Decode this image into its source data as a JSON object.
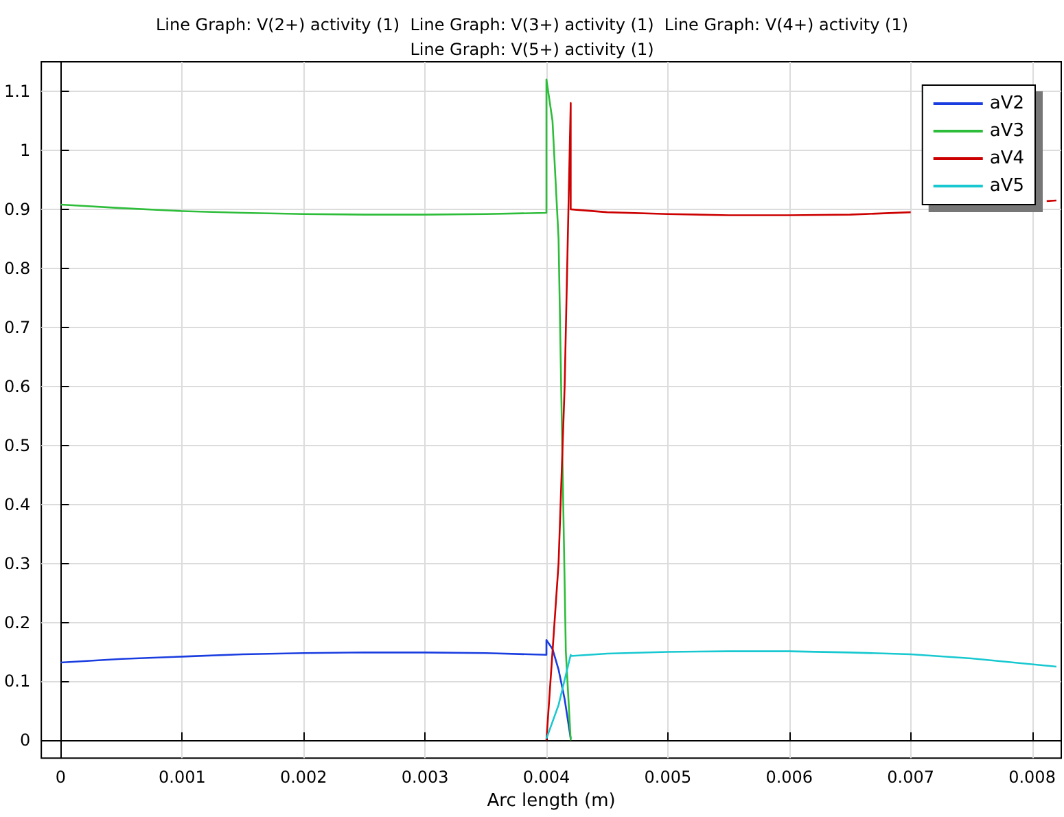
{
  "chart_data": {
    "type": "line",
    "title": "Line Graph: V(2+) activity (1)  Line Graph: V(3+) activity (1)  Line Graph: V(4+) activity (1)  Line Graph: V(5+) activity (1)",
    "xlabel": "Arc length (m)",
    "xlim": [
      -0.00016,
      0.00824
    ],
    "xticks": [
      0,
      0.001,
      0.002,
      0.003,
      0.004,
      0.005,
      0.006,
      0.007,
      0.008
    ],
    "ylim": [
      -0.03,
      1.15
    ],
    "yticks": [
      0,
      0.1,
      0.2,
      0.3,
      0.4,
      0.5,
      0.6,
      0.7,
      0.8,
      0.9,
      1,
      1.1
    ],
    "grid": true,
    "legend": "top right",
    "marker": "none",
    "line_style": "solid",
    "series": [
      {
        "name": "aV2",
        "color": "#1a3de0",
        "x": [
          0,
          0.0005,
          0.001,
          0.0015,
          0.002,
          0.0025,
          0.003,
          0.0035,
          0.004,
          0.004,
          0.00405,
          0.0041,
          0.00415,
          0.0042
        ],
        "values": [
          0.132,
          0.138,
          0.142,
          0.146,
          0.148,
          0.149,
          0.149,
          0.148,
          0.145,
          0.17,
          0.155,
          0.12,
          0.07,
          0.003
        ]
      },
      {
        "name": "aV3",
        "color": "#2ebd3a",
        "x": [
          0,
          0.0005,
          0.001,
          0.0015,
          0.002,
          0.0025,
          0.003,
          0.0035,
          0.004,
          0.004,
          0.00405,
          0.0041,
          0.00413,
          0.00416,
          0.0042
        ],
        "values": [
          0.908,
          0.902,
          0.897,
          0.894,
          0.892,
          0.891,
          0.891,
          0.892,
          0.894,
          1.12,
          1.05,
          0.85,
          0.5,
          0.15,
          0.0
        ]
      },
      {
        "name": "aV4",
        "color": "#cc0000",
        "x": [
          0.004,
          0.0041,
          0.00415,
          0.0042,
          0.0042,
          0.0045,
          0.005,
          0.0055,
          0.006,
          0.0065,
          0.007,
          0.0075,
          0.00812,
          0.0082
        ],
        "values": [
          0.0,
          0.3,
          0.6,
          1.08,
          0.9,
          0.895,
          0.892,
          0.89,
          0.89,
          0.891,
          0.895,
          null,
          0.914,
          0.915
        ]
      },
      {
        "name": "aV5",
        "color": "#17c8d0",
        "x": [
          0.004,
          0.0041,
          0.0042,
          0.0042,
          0.0045,
          0.005,
          0.0055,
          0.006,
          0.0065,
          0.007,
          0.0075,
          0.0082
        ],
        "values": [
          0.003,
          0.06,
          0.145,
          0.143,
          0.147,
          0.15,
          0.151,
          0.151,
          0.149,
          0.146,
          0.139,
          0.125
        ]
      }
    ]
  }
}
